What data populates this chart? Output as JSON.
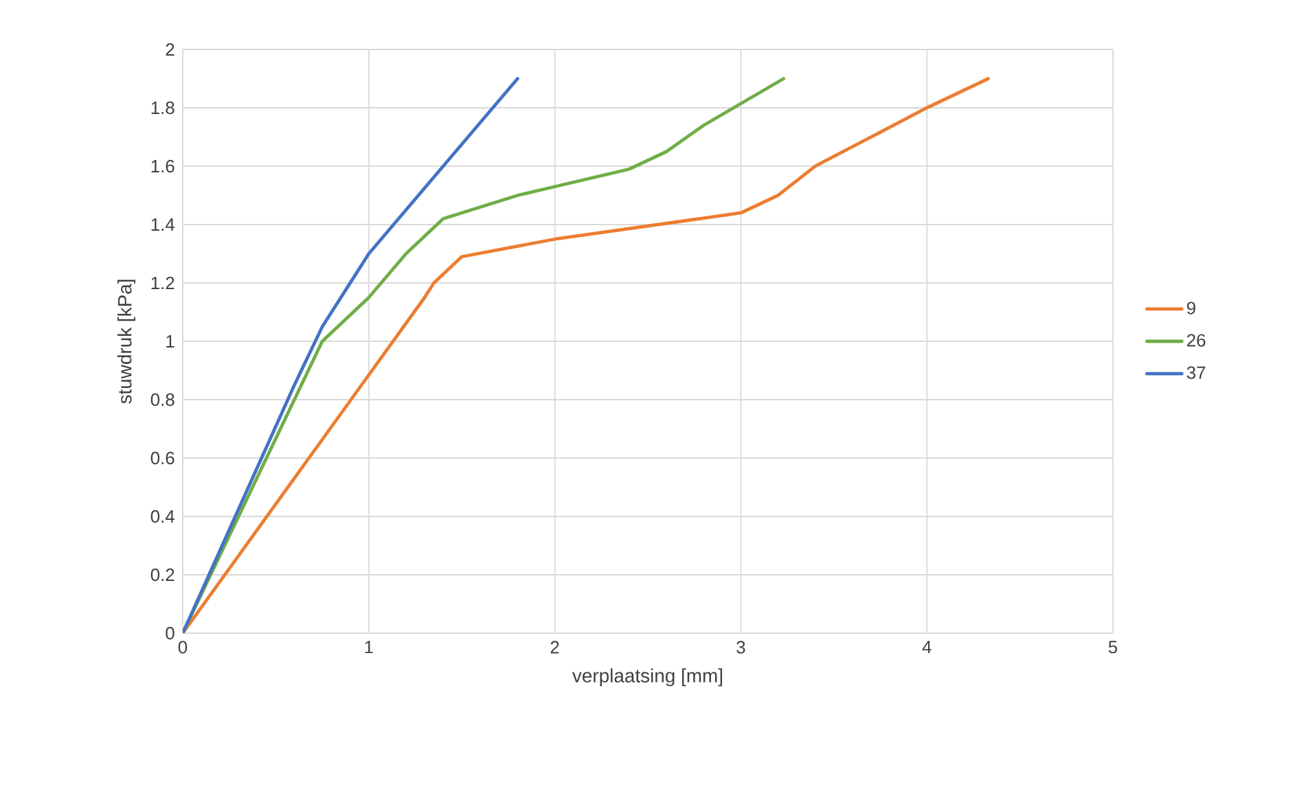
{
  "chart_data": {
    "type": "line",
    "xlabel": "verplaatsing [mm]",
    "ylabel": "stuwdruk [kPa]",
    "xlim": [
      0,
      5
    ],
    "xticks": [
      0,
      1,
      2,
      3,
      4,
      5
    ],
    "ylim": [
      0,
      2
    ],
    "yticks": [
      0,
      0.2,
      0.4,
      0.6,
      0.8,
      1,
      1.2,
      1.4,
      1.6,
      1.8,
      2
    ],
    "grid": true,
    "legend": "right",
    "marker": "none",
    "line_style": "solid",
    "series": [
      {
        "name": "9",
        "color": "#ed7d31",
        "x": [
          0,
          1.3,
          1.35,
          1.5,
          2,
          3,
          3.2,
          3.4,
          4,
          4.33
        ],
        "values": [
          0,
          1.15,
          1.2,
          1.29,
          1.35,
          1.44,
          1.5,
          1.6,
          1.8,
          1.9
        ]
      },
      {
        "name": "26",
        "color": "#70ad47",
        "x": [
          0,
          0.75,
          1,
          1.2,
          1.4,
          1.8,
          2,
          2.4,
          2.6,
          2.8,
          3.23
        ],
        "values": [
          0,
          1.0,
          1.15,
          1.3,
          1.42,
          1.5,
          1.53,
          1.59,
          1.65,
          1.74,
          1.9
        ]
      },
      {
        "name": "37",
        "color": "#4472c4",
        "x": [
          0,
          0.6,
          0.75,
          1,
          1.2,
          1.4,
          1.6,
          1.8
        ],
        "values": [
          0,
          0.85,
          1.05,
          1.3,
          1.45,
          1.6,
          1.75,
          1.9
        ]
      }
    ]
  }
}
